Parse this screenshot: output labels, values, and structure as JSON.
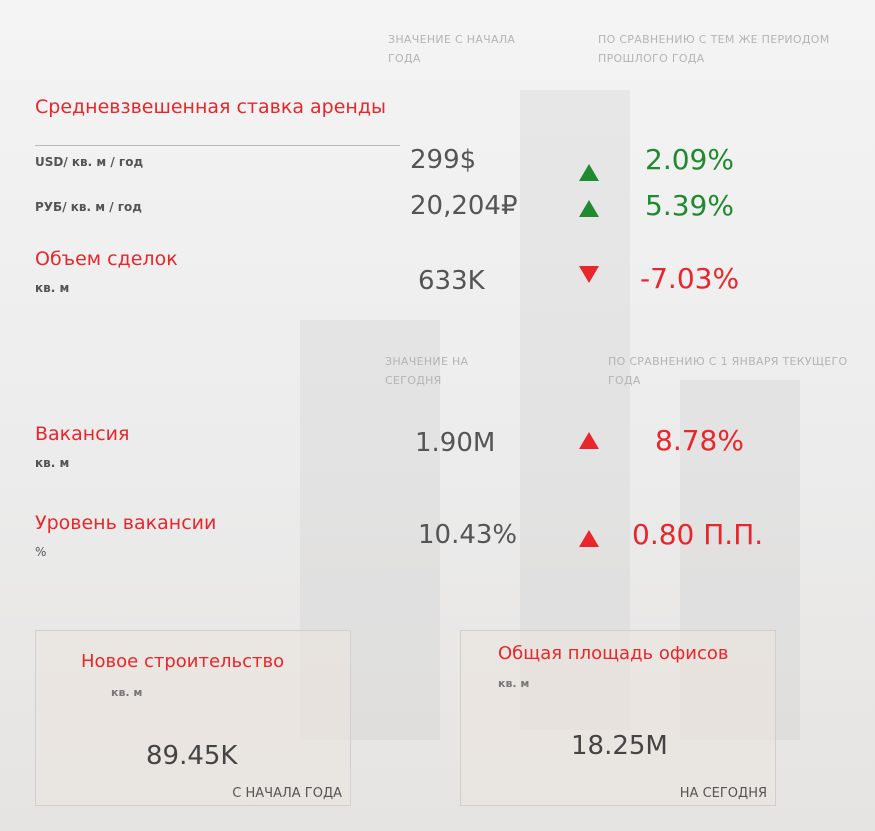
{
  "headers_ytd": {
    "value_label": "ЗНАЧЕНИЕ С НАЧАЛА ГОДА",
    "compare_label": "ПО СРАВНЕНИЮ С ТЕМ ЖЕ ПЕРИОДОМ ПРОШЛОГО ГОДА"
  },
  "rent": {
    "title": "Средневзвешенная ставка аренды",
    "rows": [
      {
        "unit": "USD/ кв. м / год",
        "value": "299$",
        "change": "2.09%"
      },
      {
        "unit": "РУБ/ кв. м / год",
        "value": "20,204₽",
        "change": "5.39%"
      }
    ]
  },
  "volume": {
    "title": "Объем сделок",
    "unit": "кв. м",
    "value": "633K",
    "change": "-7.03%"
  },
  "headers_today": {
    "value_label": "ЗНАЧЕНИЕ НА СЕГОДНЯ",
    "compare_label": "ПО СРАВНЕНИЮ С 1 ЯНВАРЯ ТЕКУЩЕГО ГОДА"
  },
  "vacancy": {
    "title": "Вакансия",
    "unit": "кв. м",
    "value": "1.90M",
    "change": "8.78%"
  },
  "vacancy_rate": {
    "title": "Уровень вакансии",
    "unit": "%",
    "value": "10.43%",
    "change": "0.80 П.П."
  },
  "cards": [
    {
      "title": "Новое строительство",
      "unit": "кв. м",
      "value": "89.45K",
      "note": "С НАЧАЛА ГОДА"
    },
    {
      "title": "Общая площадь офисов",
      "unit": "кв. м",
      "value": "18.25M",
      "note": "НА СЕГОДНЯ"
    }
  ]
}
